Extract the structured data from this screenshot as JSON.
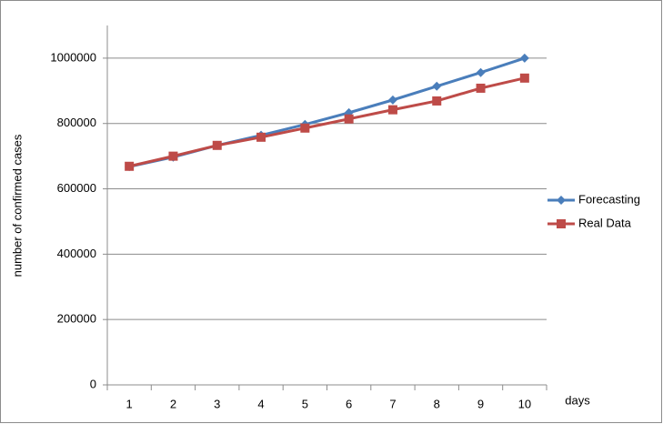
{
  "chart_data": {
    "type": "line",
    "y_label": "number of confirmed cases",
    "x_label": "days",
    "categories": [
      "1",
      "2",
      "3",
      "4",
      "5",
      "6",
      "7",
      "8",
      "9",
      "10"
    ],
    "series": [
      {
        "name": "Forecasting",
        "color": "#4a7ebb",
        "marker": "diamond",
        "values": [
          668000,
          697000,
          733000,
          764000,
          797000,
          833000,
          872000,
          914000,
          956000,
          1000000
        ]
      },
      {
        "name": "Real Data",
        "color": "#be4b48",
        "marker": "square",
        "values": [
          669000,
          700000,
          733000,
          758000,
          786000,
          814000,
          842000,
          869000,
          908000,
          939000
        ]
      }
    ],
    "ylim": [
      0,
      1100000
    ],
    "yticks": [
      0,
      200000,
      400000,
      600000,
      800000,
      1000000
    ],
    "grid": true,
    "legend": "right"
  }
}
